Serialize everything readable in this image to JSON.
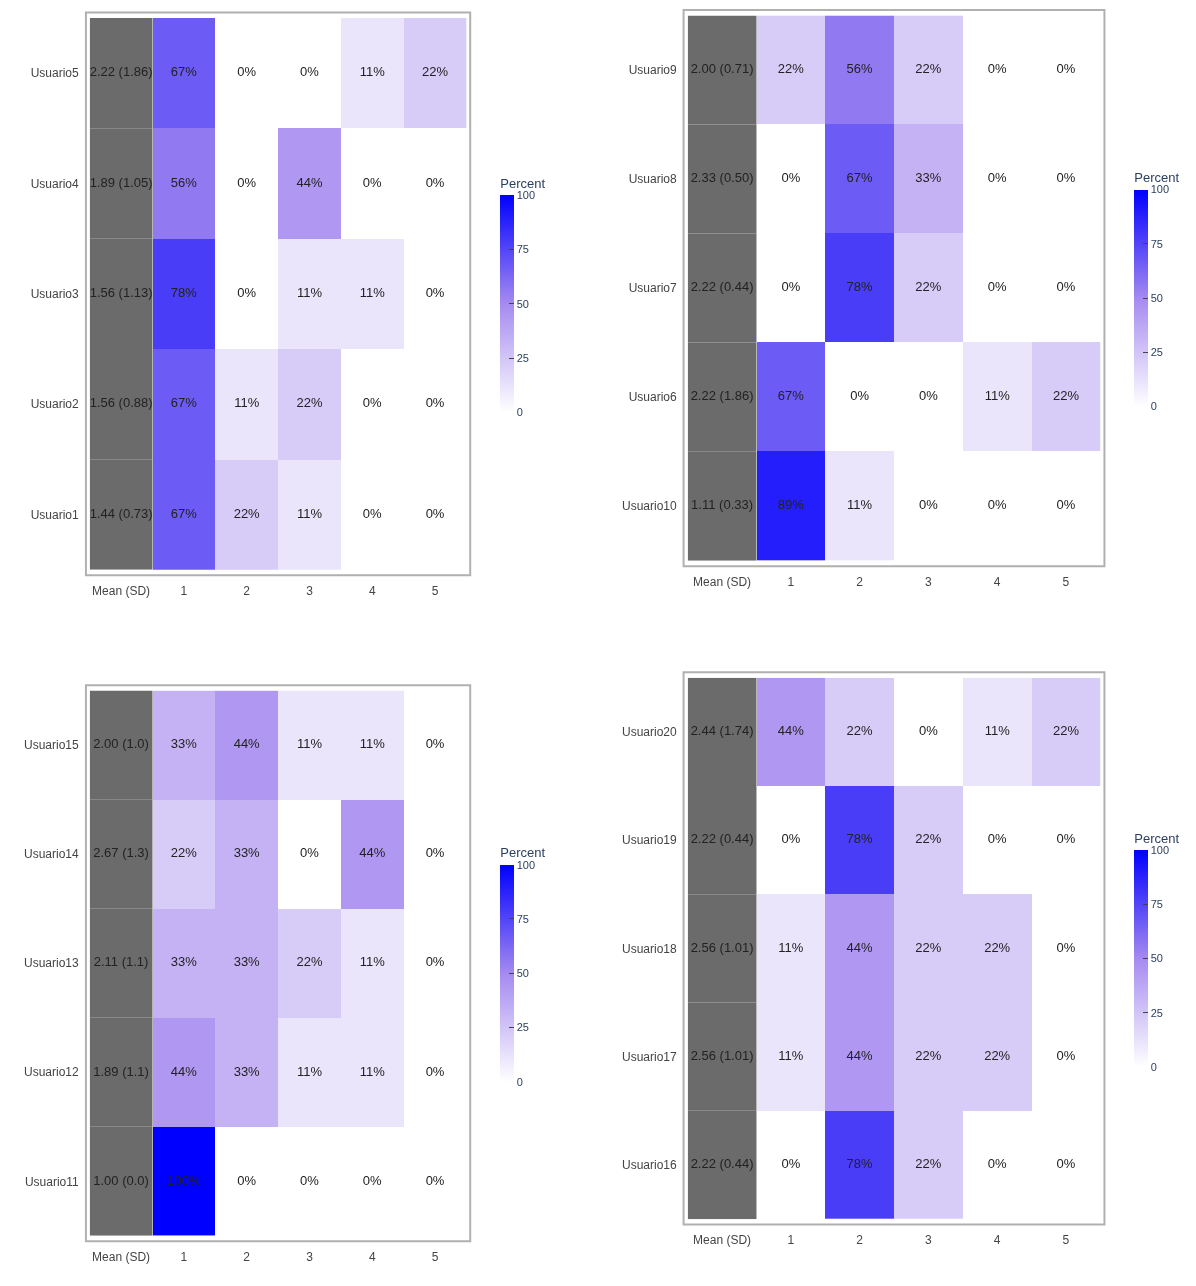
{
  "chart_data": [
    {
      "type": "heatmap",
      "categories": [
        "Mean (SD)",
        "1",
        "2",
        "3",
        "4",
        "5"
      ],
      "y_categories": [
        "Usuario5",
        "Usuario4",
        "Usuario3",
        "Usuario2",
        "Usuario1"
      ],
      "cells": [
        [
          null,
          67,
          0,
          0,
          11,
          22
        ],
        [
          null,
          56,
          0,
          44,
          0,
          0
        ],
        [
          null,
          78,
          0,
          11,
          11,
          0
        ],
        [
          null,
          67,
          11,
          22,
          0,
          0
        ],
        [
          null,
          67,
          22,
          11,
          0,
          0
        ]
      ],
      "cell_labels": [
        [
          "2.22 (1.86)",
          "67%",
          "0%",
          "0%",
          "11%",
          "22%"
        ],
        [
          "1.89 (1.05)",
          "56%",
          "0%",
          "44%",
          "0%",
          "0%"
        ],
        [
          "1.56 (1.13)",
          "78%",
          "0%",
          "11%",
          "11%",
          "0%"
        ],
        [
          "1.56 (0.88)",
          "67%",
          "11%",
          "22%",
          "0%",
          "0%"
        ],
        [
          "1.44 (0.73)",
          "67%",
          "22%",
          "11%",
          "0%",
          "0%"
        ]
      ],
      "clabel": "Percent",
      "clim": [
        0,
        100
      ],
      "cticks": [
        0,
        25,
        50,
        75,
        100
      ]
    },
    {
      "type": "heatmap",
      "categories": [
        "Mean (SD)",
        "1",
        "2",
        "3",
        "4",
        "5"
      ],
      "y_categories": [
        "Usuario9",
        "Usuario8",
        "Usuario7",
        "Usuario6",
        "Usuario10"
      ],
      "cells": [
        [
          null,
          22,
          56,
          22,
          0,
          0
        ],
        [
          null,
          0,
          67,
          33,
          0,
          0
        ],
        [
          null,
          0,
          78,
          22,
          0,
          0
        ],
        [
          null,
          67,
          0,
          0,
          11,
          22
        ],
        [
          null,
          89,
          11,
          0,
          0,
          0
        ]
      ],
      "cell_labels": [
        [
          "2.00 (0.71)",
          "22%",
          "56%",
          "22%",
          "0%",
          "0%"
        ],
        [
          "2.33 (0.50)",
          "0%",
          "67%",
          "33%",
          "0%",
          "0%"
        ],
        [
          "2.22 (0.44)",
          "0%",
          "78%",
          "22%",
          "0%",
          "0%"
        ],
        [
          "2.22 (1.86)",
          "67%",
          "0%",
          "0%",
          "11%",
          "22%"
        ],
        [
          "1.11 (0.33)",
          "89%",
          "11%",
          "0%",
          "0%",
          "0%"
        ]
      ],
      "clabel": "Percent",
      "clim": [
        0,
        100
      ],
      "cticks": [
        0,
        25,
        50,
        75,
        100
      ]
    },
    {
      "type": "heatmap",
      "categories": [
        "Mean (SD)",
        "1",
        "2",
        "3",
        "4",
        "5"
      ],
      "y_categories": [
        "Usuario15",
        "Usuario14",
        "Usuario13",
        "Usuario12",
        "Usuario11"
      ],
      "cells": [
        [
          null,
          33,
          44,
          11,
          11,
          0
        ],
        [
          null,
          22,
          33,
          0,
          44,
          0
        ],
        [
          null,
          33,
          33,
          22,
          11,
          0
        ],
        [
          null,
          44,
          33,
          11,
          11,
          0
        ],
        [
          null,
          100,
          0,
          0,
          0,
          0
        ]
      ],
      "cell_labels": [
        [
          "2.00 (1.0)",
          "33%",
          "44%",
          "11%",
          "11%",
          "0%"
        ],
        [
          "2.67 (1.3)",
          "22%",
          "33%",
          "0%",
          "44%",
          "0%"
        ],
        [
          "2.11 (1.1)",
          "33%",
          "33%",
          "22%",
          "11%",
          "0%"
        ],
        [
          "1.89 (1.1)",
          "44%",
          "33%",
          "11%",
          "11%",
          "0%"
        ],
        [
          "1.00 (0.0)",
          "100%",
          "0%",
          "0%",
          "0%",
          "0%"
        ]
      ],
      "clabel": "Percent",
      "clim": [
        0,
        100
      ],
      "cticks": [
        0,
        25,
        50,
        75,
        100
      ]
    },
    {
      "type": "heatmap",
      "categories": [
        "Mean (SD)",
        "1",
        "2",
        "3",
        "4",
        "5"
      ],
      "y_categories": [
        "Usuario20",
        "Usuario19",
        "Usuario18",
        "Usuario17",
        "Usuario16"
      ],
      "cells": [
        [
          null,
          44,
          22,
          0,
          11,
          22
        ],
        [
          null,
          0,
          78,
          22,
          0,
          0
        ],
        [
          null,
          11,
          44,
          22,
          22,
          0
        ],
        [
          null,
          11,
          44,
          22,
          22,
          0
        ],
        [
          null,
          0,
          78,
          22,
          0,
          0
        ]
      ],
      "cell_labels": [
        [
          "2.44 (1.74)",
          "44%",
          "22%",
          "0%",
          "11%",
          "22%"
        ],
        [
          "2.22 (0.44)",
          "0%",
          "78%",
          "22%",
          "0%",
          "0%"
        ],
        [
          "2.56 (1.01)",
          "11%",
          "44%",
          "22%",
          "22%",
          "0%"
        ],
        [
          "2.56 (1.01)",
          "11%",
          "44%",
          "22%",
          "22%",
          "0%"
        ],
        [
          "2.22 (0.44)",
          "0%",
          "78%",
          "22%",
          "0%",
          "0%"
        ]
      ],
      "clabel": "Percent",
      "clim": [
        0,
        100
      ],
      "cticks": [
        0,
        25,
        50,
        75,
        100
      ]
    }
  ]
}
